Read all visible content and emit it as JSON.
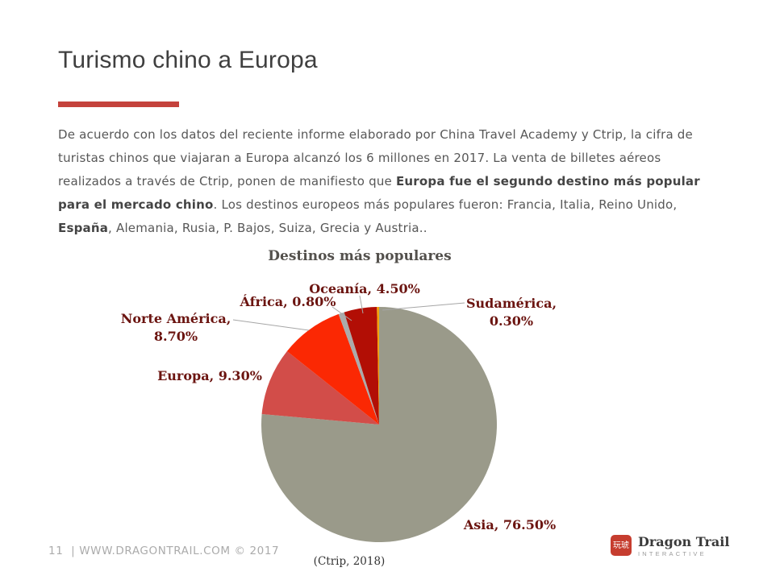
{
  "slide": {
    "title": "Turismo chino a Europa",
    "accent_color": "#c4423c",
    "paragraph_segments": [
      {
        "text": "De acuerdo con los datos del reciente informe elaborado por China Travel Academy y Ctrip, la cifra de turistas chinos que viajaran a Europa alcanzó los 6 millones en 2017. La venta de billetes aéreos realizados a través de Ctrip, ponen de manifiesto que ",
        "bold": false
      },
      {
        "text": "Europa fue el segundo destino más popular para el mercado chino",
        "bold": true
      },
      {
        "text": ". Los destinos europeos más populares fueron: Francia, Italia, Reino Unido, ",
        "bold": false
      },
      {
        "text": "España",
        "bold": true
      },
      {
        "text": ", Alemania, Rusia, P. Bajos, Suiza, Grecia y Austria..",
        "bold": false
      }
    ],
    "footer": {
      "page_info": "11  | WWW.DRAGONTRAIL.COM © 2017"
    },
    "logo": {
      "seal_chars": "玩琥",
      "tile_color": "#c63d2f",
      "name": "Dragon Trail",
      "subtitle": "INTERACTIVE"
    }
  },
  "chart_data": {
    "type": "pie",
    "title": "Destinos más populares",
    "source": "(Ctrip, 2018)",
    "start_angle_deg": 0,
    "direction": "clockwise",
    "label_color": "#6b1410",
    "legend_position": "outside-labels",
    "slices": [
      {
        "key": "asia",
        "label": "Asia",
        "value": 76.5,
        "display": "Asia, 76.50%",
        "color": "#9a9a8a"
      },
      {
        "key": "europa",
        "label": "Europa",
        "value": 9.3,
        "display": "Europa, 9.30%",
        "color": "#d24d49"
      },
      {
        "key": "norte-america",
        "label": "Norte América",
        "value": 8.7,
        "display": "Norte América, 8.70%",
        "color": "#fb2803"
      },
      {
        "key": "africa",
        "label": "África",
        "value": 0.8,
        "display": "África, 0.80%",
        "color": "#ababab"
      },
      {
        "key": "oceania",
        "label": "Oceanía",
        "value": 4.5,
        "display": "Oceanía, 4.50%",
        "color": "#b20e05"
      },
      {
        "key": "sudamerica",
        "label": "Sudamérica",
        "value": 0.3,
        "display": "Sudamérica, 0.30%",
        "color": "#f2a30b"
      }
    ]
  }
}
